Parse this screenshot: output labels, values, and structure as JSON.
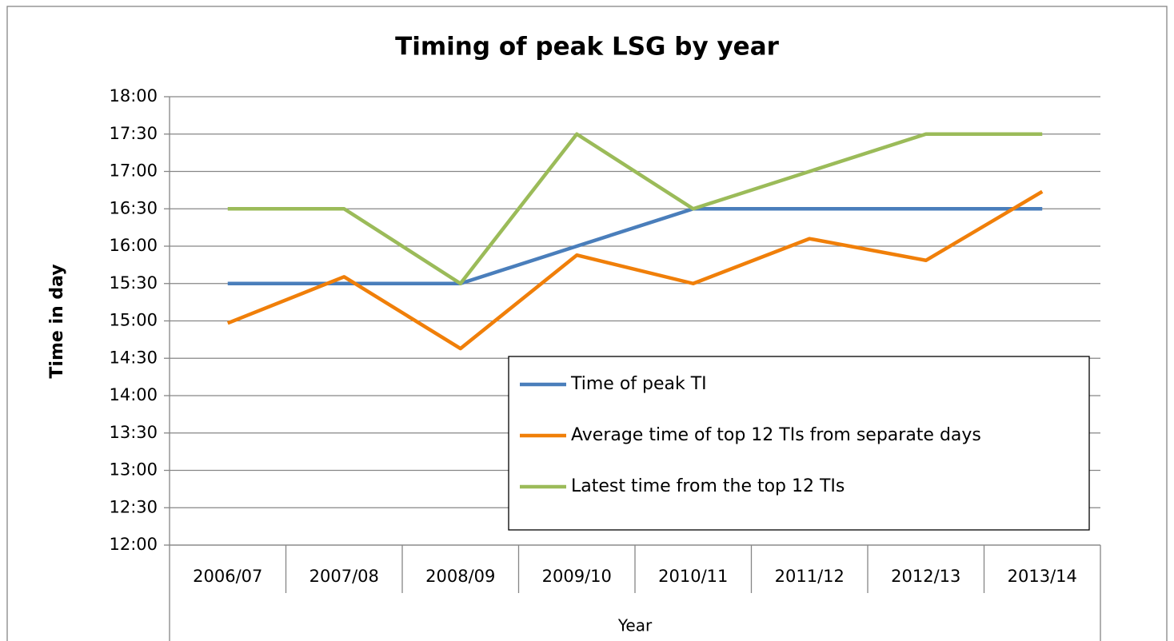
{
  "chart_data": {
    "type": "line",
    "title": "Timing of peak LSG by year",
    "y_label": "Time in day",
    "x_label": "Year",
    "categories": [
      "2006/07",
      "2007/08",
      "2008/09",
      "2009/10",
      "2010/11",
      "2011/12",
      "2012/13",
      "2013/14"
    ],
    "series": [
      {
        "name": "Time of peak TI",
        "color": "#4a7ebb",
        "values": [
          15.5,
          15.5,
          15.5,
          16.0,
          16.5,
          16.5,
          16.5,
          16.5
        ]
      },
      {
        "name": "Average time of top 12 TIs from separate days",
        "color": "#f07f09",
        "values": [
          14.97,
          15.59,
          14.63,
          15.88,
          15.5,
          16.1,
          15.81,
          16.73
        ]
      },
      {
        "name": "Latest time from the top 12 TIs",
        "color": "#9bbb59",
        "values": [
          16.5,
          16.5,
          15.5,
          17.5,
          16.5,
          17.0,
          17.5,
          17.5
        ]
      }
    ],
    "ylim": [
      12,
      18
    ],
    "yticks": [
      {
        "value": 12,
        "label": "12:00"
      },
      {
        "value": 12.5,
        "label": "12:30"
      },
      {
        "value": 13,
        "label": "13:00"
      },
      {
        "value": 13.5,
        "label": "13:30"
      },
      {
        "value": 14,
        "label": "14:00"
      },
      {
        "value": 14.5,
        "label": "14:30"
      },
      {
        "value": 15,
        "label": "15:00"
      },
      {
        "value": 15.5,
        "label": "15:30"
      },
      {
        "value": 16,
        "label": "16:00"
      },
      {
        "value": 16.5,
        "label": "16:30"
      },
      {
        "value": 17,
        "label": "17:00"
      },
      {
        "value": 17.5,
        "label": "17:30"
      },
      {
        "value": 18,
        "label": "18:00"
      }
    ],
    "grid": true,
    "legend_position": "lower right"
  }
}
